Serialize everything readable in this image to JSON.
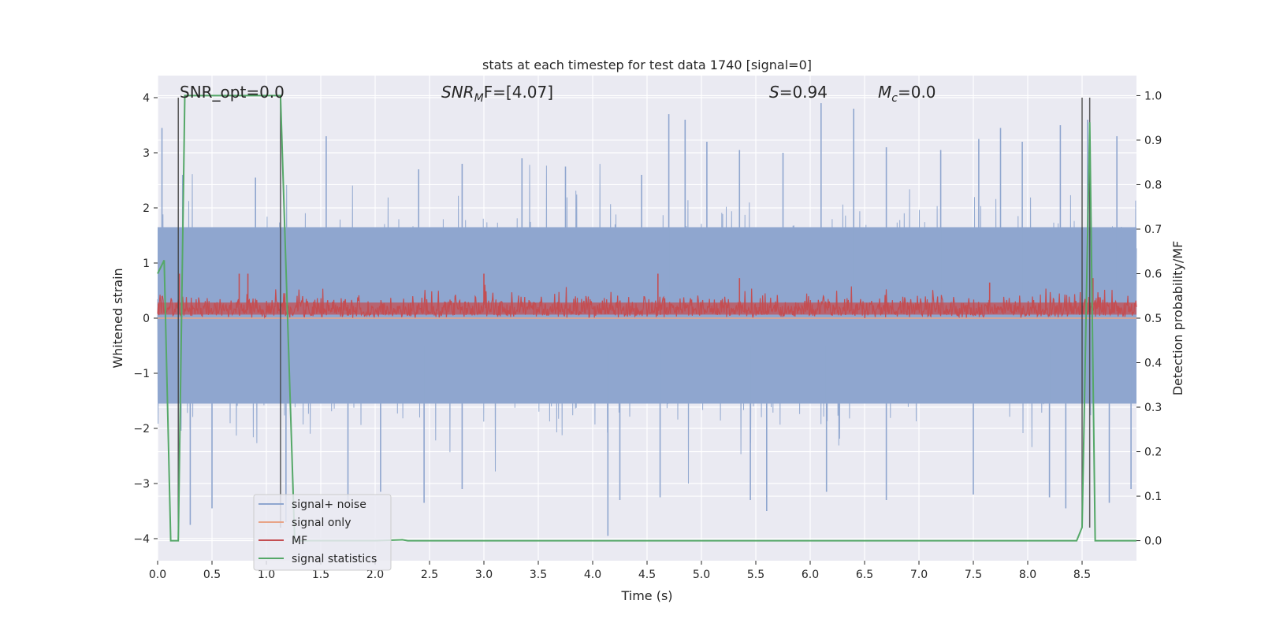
{
  "chart_data": {
    "type": "line",
    "title": "stats at each timestep for test data 1740 [signal=0]",
    "xlabel": "Time (s)",
    "ylabel": "Whitened strain",
    "y2label": "Detection probability/MF",
    "xlim": [
      0.0,
      9.0
    ],
    "ylim": [
      -4.4,
      4.4
    ],
    "y2lim": [
      -0.045,
      1.045
    ],
    "xticks": [
      "0.0",
      "0.5",
      "1.0",
      "1.5",
      "2.0",
      "2.5",
      "3.0",
      "3.5",
      "4.0",
      "4.5",
      "5.0",
      "5.5",
      "6.0",
      "6.5",
      "7.0",
      "7.5",
      "8.0",
      "8.5"
    ],
    "xtick_values": [
      0.0,
      0.5,
      1.0,
      1.5,
      2.0,
      2.5,
      3.0,
      3.5,
      4.0,
      4.5,
      5.0,
      5.5,
      6.0,
      6.5,
      7.0,
      7.5,
      8.0,
      8.5
    ],
    "yticks": [
      "4",
      "3",
      "2",
      "1",
      "0",
      "−1",
      "−2",
      "−3",
      "−4"
    ],
    "ytick_values": [
      4,
      3,
      2,
      1,
      0,
      -1,
      -2,
      -3,
      -4
    ],
    "y2ticks": [
      "1.0",
      "0.9",
      "0.8",
      "0.7",
      "0.6",
      "0.5",
      "0.4",
      "0.3",
      "0.2",
      "0.1",
      "0.0"
    ],
    "y2tick_values": [
      1.0,
      0.9,
      0.8,
      0.7,
      0.6,
      0.5,
      0.4,
      0.3,
      0.2,
      0.1,
      0.0
    ],
    "grid": true,
    "legend_position": "lower-left",
    "annotations": {
      "snr_opt": "SNR_opt=0.0",
      "snr_mf_main": "SNR",
      "snr_mf_sub": "M",
      "snr_mf_rest": "F=[4.07]",
      "s_stat_var": "S",
      "s_stat_val": "=0.94",
      "mc_main": "M",
      "mc_sub": "c",
      "mc_val": "=0.0"
    },
    "series": [
      {
        "name": "signal+ noise",
        "color": "#8fa6cf",
        "style": "dense noise trace",
        "band_envelope": {
          "upper_typical": 1.7,
          "lower_typical": -1.6
        },
        "peaks": [
          [
            0.04,
            3.45
          ],
          [
            0.23,
            2.6
          ],
          [
            0.9,
            2.55
          ],
          [
            1.55,
            3.3
          ],
          [
            2.4,
            2.7
          ],
          [
            2.8,
            2.8
          ],
          [
            3.35,
            2.9
          ],
          [
            3.75,
            2.75
          ],
          [
            4.45,
            2.6
          ],
          [
            4.7,
            3.7
          ],
          [
            4.85,
            3.6
          ],
          [
            5.05,
            3.2
          ],
          [
            5.35,
            3.05
          ],
          [
            5.75,
            3.0
          ],
          [
            6.1,
            3.9
          ],
          [
            6.4,
            3.8
          ],
          [
            6.7,
            3.1
          ],
          [
            7.2,
            3.05
          ],
          [
            7.55,
            3.25
          ],
          [
            7.75,
            3.45
          ],
          [
            7.95,
            3.2
          ],
          [
            8.3,
            3.5
          ],
          [
            8.55,
            3.6
          ],
          [
            8.82,
            3.3
          ]
        ],
        "troughs": [
          [
            0.3,
            -3.75
          ],
          [
            0.5,
            -3.45
          ],
          [
            1.18,
            -3.7
          ],
          [
            1.75,
            -3.3
          ],
          [
            2.05,
            -3.15
          ],
          [
            2.45,
            -3.35
          ],
          [
            2.8,
            -3.1
          ],
          [
            4.14,
            -3.95
          ],
          [
            4.25,
            -3.3
          ],
          [
            4.62,
            -3.25
          ],
          [
            5.45,
            -3.3
          ],
          [
            5.6,
            -3.5
          ],
          [
            6.15,
            -3.15
          ],
          [
            6.7,
            -3.3
          ],
          [
            7.5,
            -3.2
          ],
          [
            8.2,
            -3.25
          ],
          [
            8.35,
            -3.45
          ],
          [
            8.75,
            -3.35
          ],
          [
            8.95,
            -3.1
          ]
        ]
      },
      {
        "name": "signal only",
        "color": "#e8a487",
        "style": "flat line at zero",
        "x": [
          0.0,
          9.0
        ],
        "y": [
          0.0,
          0.0
        ]
      },
      {
        "name": "MF",
        "color": "#c44e52",
        "axis": "right",
        "style": "dense noise trace",
        "band": [
          0.5,
          0.56
        ],
        "peaks": [
          [
            0.2,
            0.6
          ],
          [
            0.75,
            0.6
          ],
          [
            0.83,
            0.6
          ],
          [
            3.0,
            0.6
          ],
          [
            4.6,
            0.6
          ],
          [
            5.35,
            0.59
          ],
          [
            7.65,
            0.58
          ],
          [
            8.6,
            0.59
          ]
        ]
      },
      {
        "name": "signal statistics",
        "color": "#55a868",
        "axis": "right",
        "x": [
          0.0,
          0.06,
          0.12,
          0.19,
          0.25,
          1.0,
          1.13,
          1.26,
          2.0,
          2.25,
          2.3,
          8.45,
          8.5,
          8.57,
          8.62,
          9.0
        ],
        "y": [
          0.6,
          0.63,
          0.0,
          0.0,
          1.0,
          1.0,
          1.0,
          0.0,
          0.0,
          0.002,
          0.0,
          0.0,
          0.03,
          0.94,
          0.0,
          0.0
        ]
      }
    ],
    "vertical_markers": [
      0.19,
      1.13,
      8.5,
      8.57
    ]
  }
}
